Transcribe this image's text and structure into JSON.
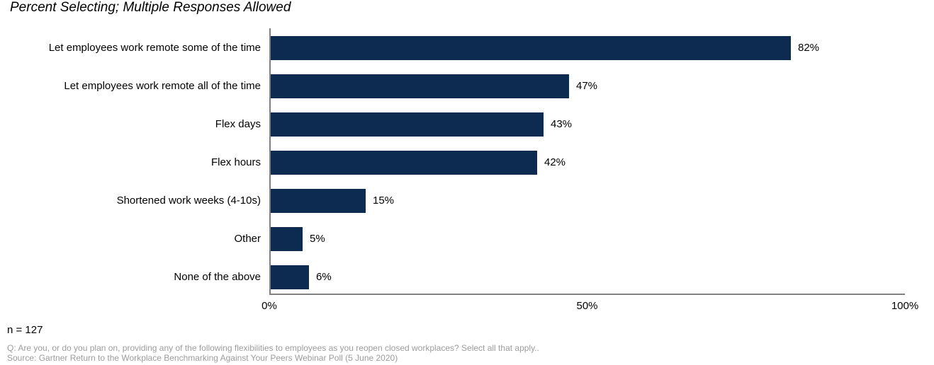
{
  "chart_data": {
    "type": "bar",
    "orientation": "horizontal",
    "title": "Percent Selecting; Multiple Responses Allowed",
    "categories": [
      "Let employees work remote some of the time",
      "Let employees work remote all of the time",
      "Flex days",
      "Flex hours",
      "Shortened work weeks (4-10s)",
      "Other",
      "None of the above"
    ],
    "values": [
      82,
      47,
      43,
      42,
      15,
      5,
      6
    ],
    "value_labels": [
      "82%",
      "47%",
      "43%",
      "42%",
      "15%",
      "5%",
      "6%"
    ],
    "value_suffix": "%",
    "xlim": [
      0,
      100
    ],
    "xticks": [
      "0%",
      "50%",
      "100%"
    ],
    "grid": false,
    "legend": false,
    "bar_color": "#0d2a51",
    "axis_color": "#808080"
  },
  "footer": {
    "n_label": "n = 127",
    "question": "Q: Are you, or do you plan on, providing any of the following flexibilities to employees as you reopen closed workplaces? Select all that apply..",
    "source": "Source: Gartner Return to the Workplace Benchmarking Against Your Peers Webinar Poll (5 June 2020)"
  }
}
